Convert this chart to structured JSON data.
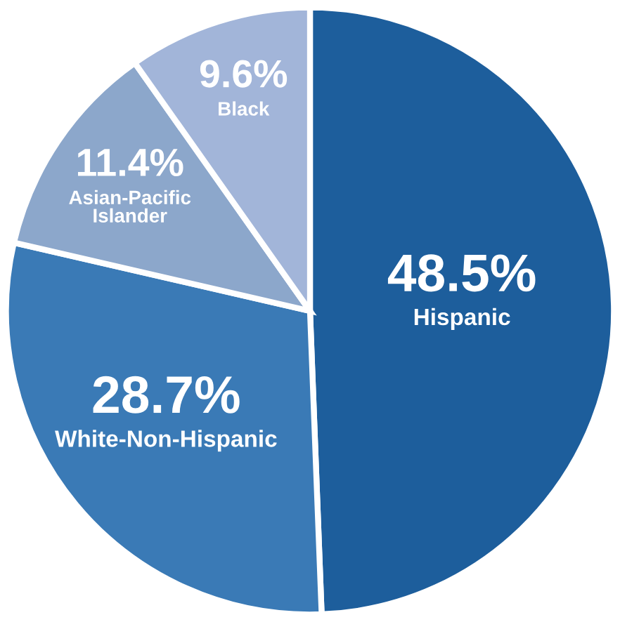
{
  "chart_data": {
    "type": "pie",
    "categories": [
      "Hispanic",
      "White-Non-Hispanic",
      "Asian-Pacific\nIslander",
      "Black"
    ],
    "values": [
      48.5,
      28.7,
      11.4,
      9.6
    ],
    "value_labels": [
      "48.5%",
      "28.7%",
      "11.4%",
      "9.6%"
    ],
    "colors": [
      "#1d5e9c",
      "#3a7ab6",
      "#8ca7cb",
      "#a2b5d9"
    ]
  }
}
